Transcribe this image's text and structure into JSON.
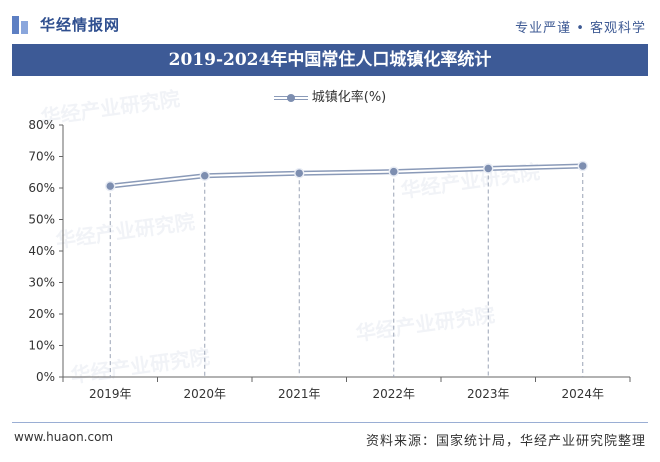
{
  "header": {
    "logo_text": "华经情报网",
    "tagline": "专业严谨 • 客观科学"
  },
  "title": "2019-2024年中国常住人口城镇化率统计",
  "legend": {
    "label": "城镇化率(%)"
  },
  "footer": {
    "website": "www.huaon.com",
    "source": "资料来源：国家统计局，华经产业研究院整理"
  },
  "watermarks": [
    "华经产业研究院",
    "华经产业研究院",
    "华经产业研究院",
    "华经产业研究院",
    "华经产业研究院"
  ],
  "colors": {
    "brand": "#3d5a96",
    "series": "#8a9ab8",
    "marker": "#7d8eb0"
  },
  "chart_data": {
    "type": "line",
    "categories": [
      "2019年",
      "2020年",
      "2021年",
      "2022年",
      "2023年",
      "2024年"
    ],
    "series": [
      {
        "name": "城镇化率(%)",
        "values": [
          60.6,
          63.9,
          64.7,
          65.2,
          66.2,
          67.0
        ]
      }
    ],
    "ylim": [
      0,
      80
    ],
    "y_ticks": [
      0,
      10,
      20,
      30,
      40,
      50,
      60,
      70,
      80
    ],
    "y_tick_labels": [
      "0%",
      "10%",
      "20%",
      "30%",
      "40%",
      "50%",
      "60%",
      "70%",
      "80%"
    ],
    "grid": "vertical-dashed",
    "legend_position": "top-center"
  }
}
